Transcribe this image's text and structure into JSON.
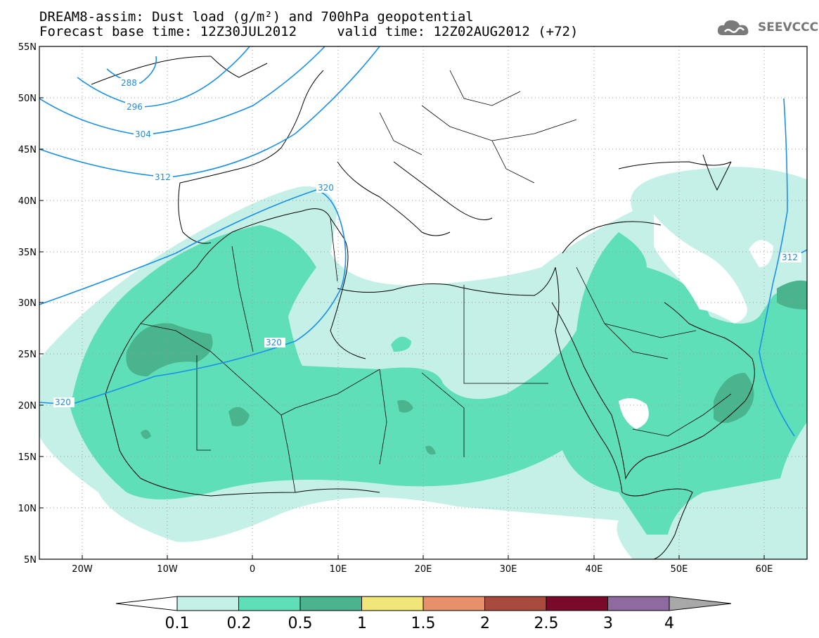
{
  "header": {
    "line1": "DREAM8-assim: Dust load (g/m²) and 700hPa geopotential",
    "line2": "Forecast base time: 12Z30JUL2012     valid time: 12Z02AUG2012 (+72)",
    "logo_text": "SEEVCCC"
  },
  "map": {
    "lat_labels": [
      "55N",
      "50N",
      "45N",
      "40N",
      "35N",
      "30N",
      "25N",
      "20N",
      "15N",
      "10N",
      "5N"
    ],
    "lon_labels": [
      "20W",
      "10W",
      "0",
      "10E",
      "20E",
      "30E",
      "40E",
      "50E",
      "60E"
    ],
    "lat_range": [
      5,
      55
    ],
    "lon_range": [
      -25,
      65
    ],
    "gridlines": "dotted",
    "contour_color": "#1a8fe8",
    "contour_labels": [
      "288",
      "296",
      "304",
      "312",
      "320",
      "320",
      "320",
      "312"
    ]
  },
  "colorbar": {
    "labels": [
      "0.1",
      "0.2",
      "0.5",
      "1",
      "1.5",
      "2",
      "2.5",
      "3",
      "4"
    ],
    "colors": [
      "#c5f0e8",
      "#5fdfb8",
      "#4ab48e",
      "#f1e67a",
      "#e8906a",
      "#a84a3c",
      "#7a0a2a",
      "#8e6aa0",
      "#a8a8a8"
    ]
  }
}
